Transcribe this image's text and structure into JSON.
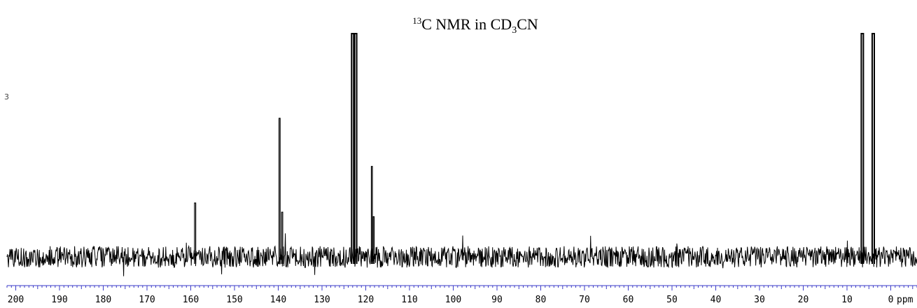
{
  "chart_data": {
    "type": "line",
    "title_parts": [
      {
        "text": "13",
        "style": "sup"
      },
      {
        "text": "C NMR in CD",
        "style": "normal"
      },
      {
        "text": "3",
        "style": "sub"
      },
      {
        "text": "CN",
        "style": "normal"
      }
    ],
    "xlabel": "ppm",
    "xlim": [
      202,
      -6
    ],
    "x_reversed": true,
    "x_ticks": [
      200,
      190,
      180,
      170,
      160,
      150,
      140,
      130,
      120,
      110,
      100,
      90,
      80,
      70,
      60,
      50,
      40,
      30,
      20,
      10,
      0
    ],
    "x_tick_labels": [
      "200",
      "190",
      "180",
      "170",
      "160",
      "150",
      "140",
      "130",
      "120",
      "110",
      "100",
      "90",
      "80",
      "70",
      "60",
      "50",
      "40",
      "30",
      "20",
      "10",
      "0"
    ],
    "y_axis_visible": false,
    "grid": false,
    "peaks": [
      {
        "ppm": 159.0,
        "height": 0.26
      },
      {
        "ppm": 139.7,
        "height": 0.63
      },
      {
        "ppm": 139.1,
        "height": 0.22
      },
      {
        "ppm": 123.0,
        "height": 1.0,
        "truncated": true
      },
      {
        "ppm": 122.3,
        "height": 1.0,
        "truncated": true
      },
      {
        "ppm": 118.6,
        "height": 0.42
      },
      {
        "ppm": 118.2,
        "height": 0.2
      },
      {
        "ppm": 6.5,
        "height": 1.0,
        "truncated": true
      },
      {
        "ppm": 4.0,
        "height": 1.0,
        "truncated": true
      }
    ],
    "noise_level": 0.085
  },
  "stray_mark": "3",
  "colors": {
    "trace": "#000000",
    "axis_ticks": "#3b3bc8",
    "background": "#ffffff"
  }
}
